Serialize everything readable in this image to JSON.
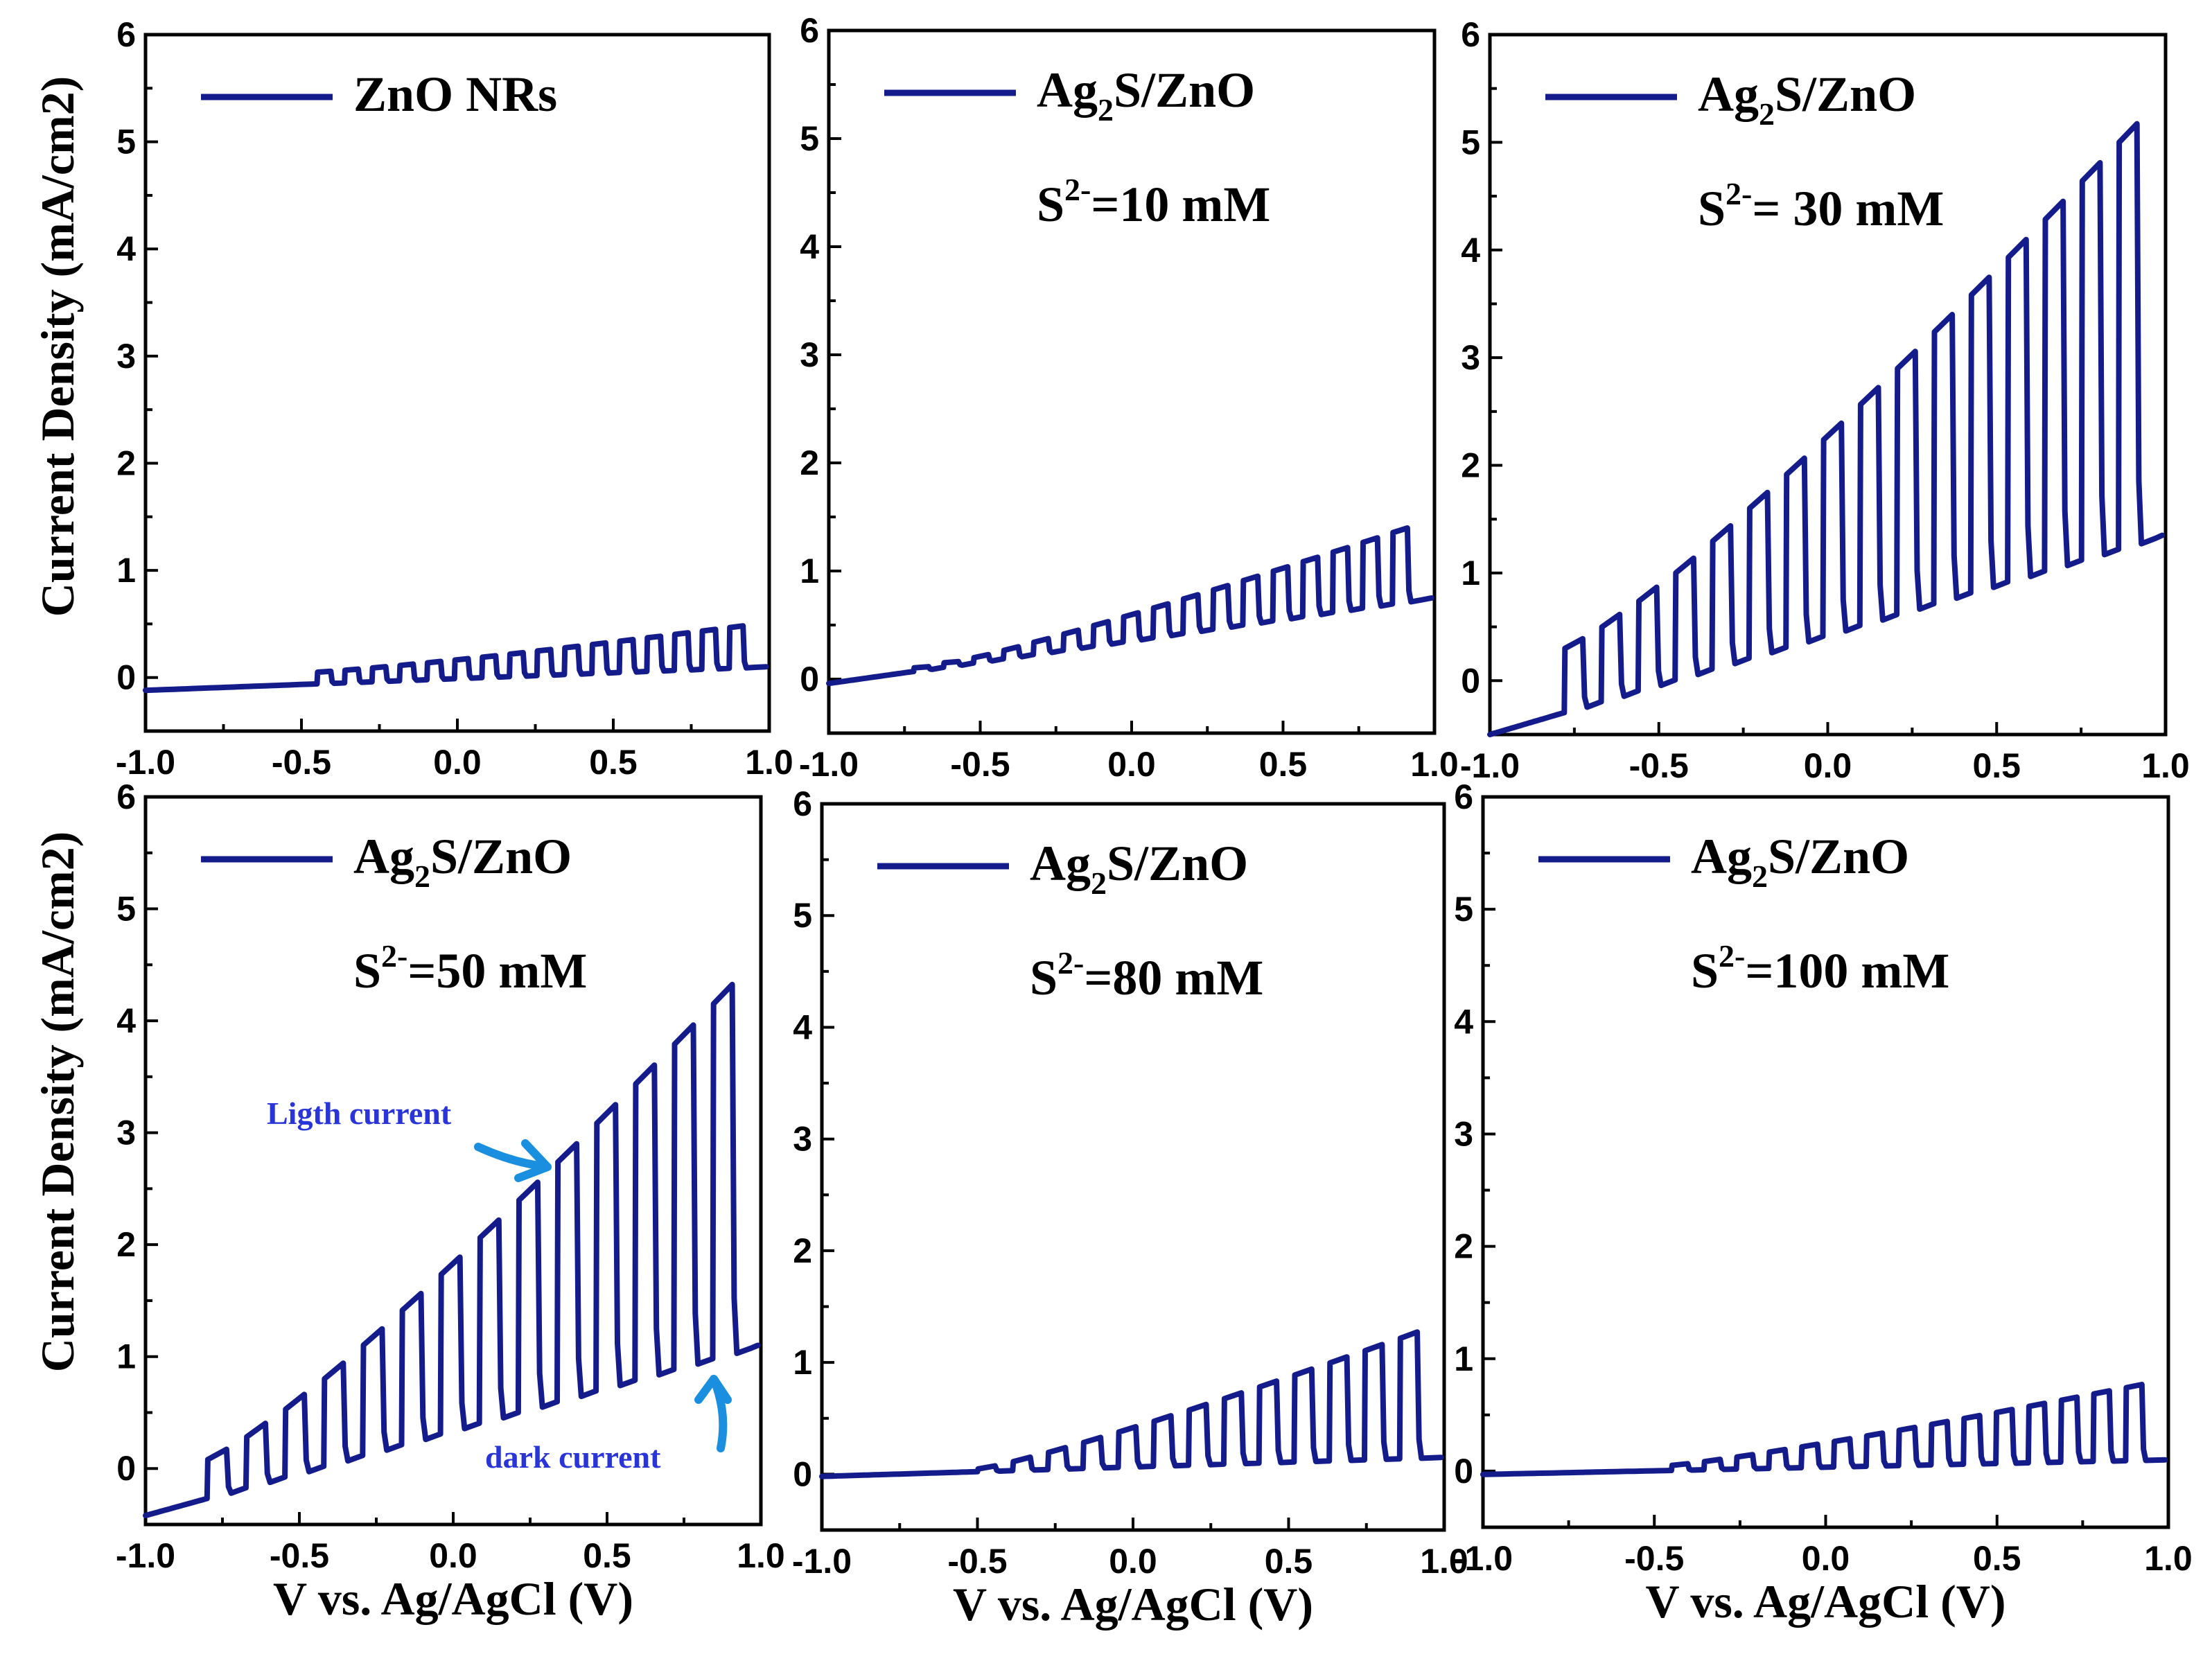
{
  "figure": {
    "series_color": "#141C8C",
    "annotation_color": "#1A8FE0",
    "annotation_text_color": "#2A35D8"
  },
  "chart_data": [
    {
      "type": "line",
      "panel": "a",
      "legend": {
        "label": "ZnO NRs",
        "placement": "top-left"
      },
      "xlabel": "",
      "ylabel": "Current Density (mA/cm2)",
      "xlim": [
        -1.0,
        1.0
      ],
      "ylim": [
        -0.5,
        6
      ],
      "xticks": [
        -1.0,
        -0.5,
        0.0,
        0.5,
        1.0
      ],
      "xtick_labels": [
        "-1.0",
        "-0.5",
        "0.0",
        "0.5",
        "1.0"
      ],
      "yticks": [
        0,
        1,
        2,
        3,
        4,
        5,
        6
      ],
      "ytick_labels": [
        "0",
        "1",
        "2",
        "3",
        "4",
        "5",
        "6"
      ],
      "series": [
        {
          "name": "ZnO NRs",
          "color": "#141C8C",
          "baseline": {
            "start": -0.12,
            "end": 0.1
          },
          "pulses": {
            "start_v": -0.45,
            "end_v": 0.96,
            "count": 16,
            "light_start": 0.05,
            "light_end": 0.48
          }
        }
      ]
    },
    {
      "type": "line",
      "panel": "b",
      "legend": {
        "label": "Ag",
        "label_sub": "2",
        "label_rest": "S/ZnO",
        "placement": "top-left"
      },
      "annotation": {
        "prefix": "S",
        "sup": "2-",
        "rest": "=10 mM"
      },
      "xlabel": "",
      "ylabel": "",
      "xlim": [
        -1.0,
        1.0
      ],
      "ylim": [
        -0.5,
        6
      ],
      "xticks": [
        -1.0,
        -0.5,
        0.0,
        0.5,
        1.0
      ],
      "xtick_labels": [
        "-1.0",
        "-0.5",
        "0.0",
        "0.5",
        "1.0"
      ],
      "yticks": [
        0,
        1,
        2,
        3,
        4,
        5,
        6
      ],
      "ytick_labels": [
        "0",
        "1",
        "2",
        "3",
        "4",
        "5",
        "6"
      ],
      "series": [
        {
          "name": "Ag2S/ZnO, S2- = 10 mM",
          "color": "#141C8C",
          "baseline": {
            "start": -0.04,
            "end": 0.75
          },
          "pulses": {
            "start_v": -0.72,
            "end_v": 0.96,
            "count": 17,
            "light_start": 0.06,
            "light_end": 1.3
          }
        }
      ]
    },
    {
      "type": "line",
      "panel": "c",
      "legend": {
        "label": "Ag",
        "label_sub": "2",
        "label_rest": "S/ZnO",
        "placement": "top-left"
      },
      "annotation": {
        "prefix": "S",
        "sup": "2-",
        "rest": "= 30 mM"
      },
      "xlabel": "",
      "ylabel": "",
      "xlim": [
        -1.0,
        1.0
      ],
      "ylim": [
        -0.5,
        6
      ],
      "xticks": [
        -1.0,
        -0.5,
        0.0,
        0.5,
        1.0
      ],
      "xtick_labels": [
        "-1.0",
        "-0.5",
        "0.0",
        "0.5",
        "1.0"
      ],
      "yticks": [
        0,
        1,
        2,
        3,
        4,
        5,
        6
      ],
      "ytick_labels": [
        "0",
        "1",
        "2",
        "3",
        "4",
        "5",
        "6"
      ],
      "series": [
        {
          "name": "Ag2S/ZnO, S2- = 30 mM",
          "color": "#141C8C",
          "baseline": {
            "start": -0.5,
            "end": 1.35
          },
          "pulses": {
            "start_v": -0.78,
            "end_v": 0.97,
            "count": 16,
            "light_start": 0.3,
            "light_end": 5.1
          }
        }
      ]
    },
    {
      "type": "line",
      "panel": "d",
      "legend": {
        "label": "Ag",
        "label_sub": "2",
        "label_rest": "S/ZnO",
        "placement": "top-left"
      },
      "annotation": {
        "prefix": "S",
        "sup": "2-",
        "rest": "=50 mM"
      },
      "callouts": {
        "light": "Ligth current",
        "dark": "dark current"
      },
      "xlabel": "V vs. Ag/AgCl (V)",
      "ylabel": "Current Density (mA/cm2)",
      "xlim": [
        -1.0,
        1.0
      ],
      "ylim": [
        -0.5,
        6
      ],
      "xticks": [
        -1.0,
        -0.5,
        0.0,
        0.5,
        1.0
      ],
      "xtick_labels": [
        "-1.0",
        "-0.5",
        "0.0",
        "0.5",
        "1.0"
      ],
      "yticks": [
        0,
        1,
        2,
        3,
        4,
        5,
        6
      ],
      "ytick_labels": [
        "0",
        "1",
        "2",
        "3",
        "4",
        "5",
        "6"
      ],
      "series": [
        {
          "name": "Ag2S/ZnO, S2- = 50 mM",
          "color": "#141C8C",
          "baseline": {
            "start": -0.42,
            "end": 1.1
          },
          "pulses": {
            "start_v": -0.8,
            "end_v": 0.97,
            "count": 14,
            "light_start": 0.08,
            "light_end": 4.3
          }
        }
      ]
    },
    {
      "type": "line",
      "panel": "e",
      "legend": {
        "label": "Ag",
        "label_sub": "2",
        "label_rest": "S/ZnO",
        "placement": "top-left"
      },
      "annotation": {
        "prefix": "S",
        "sup": "2-",
        "rest": "=80 mM"
      },
      "xlabel": "V vs. Ag/AgCl (V)",
      "ylabel": "",
      "xlim": [
        -1.0,
        1.0
      ],
      "ylim": [
        -0.5,
        6
      ],
      "xticks": [
        -1.0,
        -0.5,
        0.0,
        0.5,
        1.0
      ],
      "xtick_labels": [
        "-1.0",
        "-0.5",
        "0.0",
        "0.5",
        "1.0"
      ],
      "yticks": [
        0,
        1,
        2,
        3,
        4,
        5,
        6
      ],
      "ytick_labels": [
        "0",
        "1",
        "2",
        "3",
        "4",
        "5",
        "6"
      ],
      "series": [
        {
          "name": "Ag2S/ZnO, S2- = 80 mM",
          "color": "#141C8C",
          "baseline": {
            "start": -0.02,
            "end": 0.15
          },
          "pulses": {
            "start_v": -0.5,
            "end_v": 0.97,
            "count": 13,
            "light_start": 0.04,
            "light_end": 1.3
          }
        }
      ]
    },
    {
      "type": "line",
      "panel": "f",
      "legend": {
        "label": "Ag",
        "label_sub": "2",
        "label_rest": "S/ZnO",
        "placement": "top-left"
      },
      "annotation": {
        "prefix": "S",
        "sup": "2-",
        "rest": "=100 mM"
      },
      "xlabel": "V vs. Ag/AgCl (V)",
      "ylabel": "",
      "xlim": [
        -1.0,
        1.0
      ],
      "ylim": [
        -0.5,
        6
      ],
      "xticks": [
        -1.0,
        -0.5,
        0.0,
        0.5,
        1.0
      ],
      "xtick_labels": [
        "-1.0",
        "-0.5",
        "0.0",
        "0.5",
        "1.0"
      ],
      "yticks": [
        0,
        1,
        2,
        3,
        4,
        5,
        6
      ],
      "ytick_labels": [
        "0",
        "1",
        "2",
        "3",
        "4",
        "5",
        "6"
      ],
      "series": [
        {
          "name": "Ag2S/ZnO, S2- = 100 mM",
          "color": "#141C8C",
          "baseline": {
            "start": -0.03,
            "end": 0.1
          },
          "pulses": {
            "start_v": -0.45,
            "end_v": 0.97,
            "count": 15,
            "light_start": 0.05,
            "light_end": 0.78
          }
        }
      ]
    }
  ]
}
